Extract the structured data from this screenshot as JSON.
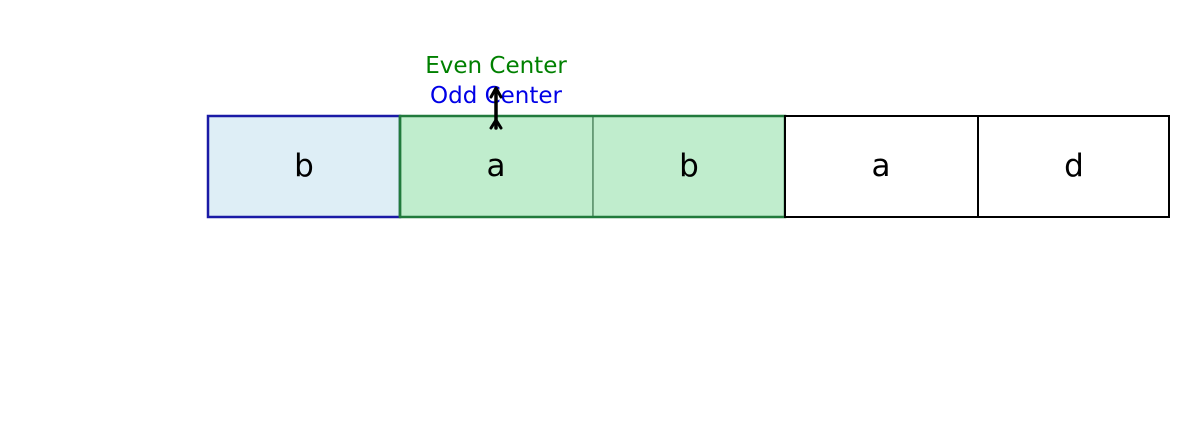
{
  "diagram": {
    "cells": [
      {
        "char": "b",
        "state": "odd-highlight"
      },
      {
        "char": "a",
        "state": "even-highlight"
      },
      {
        "char": "b",
        "state": "even-highlight"
      },
      {
        "char": "a",
        "state": "plain"
      },
      {
        "char": "d",
        "state": "plain"
      }
    ],
    "even_label": "Even Center",
    "odd_label": "Odd Center",
    "colors": {
      "even_label": "#008000",
      "odd_label": "#0000e6",
      "odd_fill": "#deeef6",
      "odd_stroke": "#1a1aa6",
      "even_fill": "#c0edcd",
      "even_stroke": "#217a3c",
      "plain_stroke": "#000000",
      "arrow": "#000000"
    }
  }
}
